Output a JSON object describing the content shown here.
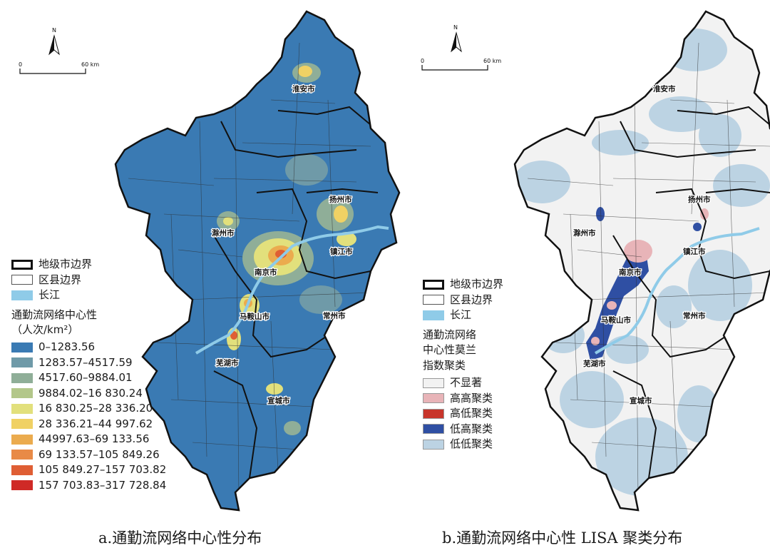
{
  "map_a": {
    "caption": "a.通勤流网络中心性分布",
    "legend": {
      "boundaries": [
        {
          "label": "地级市边界",
          "type": "city-boundary"
        },
        {
          "label": "区县边界",
          "type": "county-boundary"
        },
        {
          "label": "长江",
          "type": "river",
          "color": "#8fcbe8"
        }
      ],
      "title_line1": "通勤流网络中心性",
      "title_line2": "（人次/km²）",
      "classes": [
        {
          "label": "0–1283.56",
          "color": "#3a7ab3"
        },
        {
          "label": "1283.57–4517.59",
          "color": "#6f9aa8"
        },
        {
          "label": "4517.60–9884.01",
          "color": "#8fae98"
        },
        {
          "label": "9884.02–16 830.24",
          "color": "#b3c78a"
        },
        {
          "label": "16 830.25–28 336.20",
          "color": "#e2e07c"
        },
        {
          "label": "28 336.21–44 997.62",
          "color": "#f0d164"
        },
        {
          "label": "44997.63–69 133.56",
          "color": "#ebab4e"
        },
        {
          "label": "69 133.57–105 849.26",
          "color": "#e88a47"
        },
        {
          "label": "105 849.27–157 703.82",
          "color": "#df5e34"
        },
        {
          "label": "157 703.83–317 728.84",
          "color": "#cf2a26"
        }
      ]
    },
    "north": "N",
    "scale": {
      "start": "0",
      "end": "60 km"
    },
    "cities": [
      "淮安市",
      "扬州市",
      "滁州市",
      "镇江市",
      "南京市",
      "马鞍山市",
      "常州市",
      "芜湖市",
      "宣城市"
    ]
  },
  "map_b": {
    "caption": "b.通勤流网络中心性 LISA 聚类分布",
    "legend": {
      "boundaries": [
        {
          "label": "地级市边界",
          "type": "city-boundary"
        },
        {
          "label": "区县边界",
          "type": "county-boundary"
        },
        {
          "label": "长江",
          "type": "river",
          "color": "#8fcbe8"
        }
      ],
      "title_line1": "通勤流网络",
      "title_line2": "中心性莫兰",
      "title_line3": "指数聚类",
      "classes": [
        {
          "label": "不显著",
          "color": "#f2f2f2"
        },
        {
          "label": "高高聚类",
          "color": "#e8b4b8"
        },
        {
          "label": "高低聚类",
          "color": "#c8352b"
        },
        {
          "label": "低高聚类",
          "color": "#2f4fa3"
        },
        {
          "label": "低低聚类",
          "color": "#bcd3e3"
        }
      ]
    },
    "north": "N",
    "scale": {
      "start": "0",
      "end": "60 km"
    },
    "cities": [
      "淮安市",
      "扬州市",
      "滁州市",
      "镇江市",
      "南京市",
      "马鞍山市",
      "常州市",
      "芜湖市",
      "宣城市"
    ]
  }
}
